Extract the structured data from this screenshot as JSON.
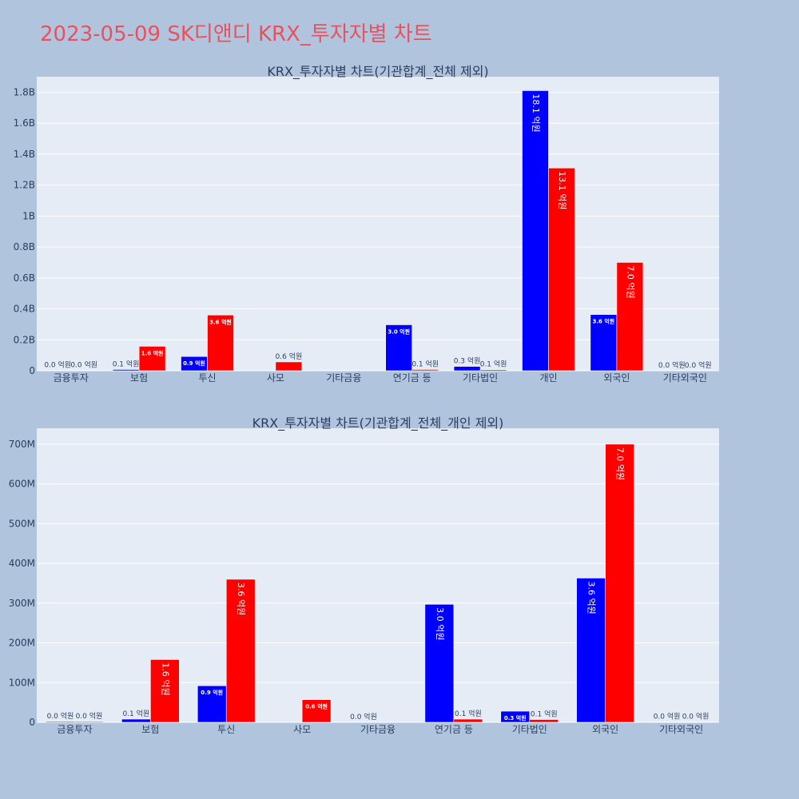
{
  "title": "2023-05-09 SK디앤디 KRX_투자자별 차트",
  "colors": {
    "buy": "#0000ff",
    "sell": "#ff0000",
    "plot_bg": "#e5ecf6",
    "page_bg": "#b0c4de",
    "title": "#e8525e"
  },
  "chart_data": [
    {
      "type": "bar",
      "title": "KRX_투자자별 차트(기관합계_전체 제외)",
      "categories": [
        "금융투자",
        "보험",
        "투신",
        "사모",
        "기타금융",
        "연기금 등",
        "기타법인",
        "개인",
        "외국인",
        "기타외국인"
      ],
      "ylim": [
        0,
        1900000000
      ],
      "yticks": [
        0,
        200000000,
        400000000,
        600000000,
        800000000,
        1000000000,
        1200000000,
        1400000000,
        1600000000,
        1800000000
      ],
      "ytick_labels": [
        "0",
        "0.2B",
        "0.4B",
        "0.6B",
        "0.8B",
        "1B",
        "1.2B",
        "1.4B",
        "1.6B",
        "1.8B"
      ],
      "grid": true,
      "series": [
        {
          "color": "#0000ff",
          "values": [
            2000000,
            8000000,
            92000000,
            null,
            null,
            297000000,
            28000000,
            1810000000,
            363000000,
            1000000
          ],
          "labels": [
            "0.0 억원",
            "0.1 억원",
            "0.9 억원",
            "",
            "",
            "3.0 억원",
            "0.3 억원",
            "18.1 억원",
            "3.6 억원",
            "0.0 억원"
          ]
        },
        {
          "color": "#ff0000",
          "values": [
            2000000,
            158000000,
            360000000,
            57000000,
            null,
            8000000,
            7000000,
            1310000000,
            700000000,
            1000000
          ],
          "labels": [
            "0.0 억원",
            "1.6 억원",
            "3.6 억원",
            "0.6 억원",
            "",
            "0.1 억원",
            "0.1 억원",
            "13.1 억원",
            "7.0 억원",
            "0.0 억원"
          ]
        }
      ]
    },
    {
      "type": "bar",
      "title": "KRX_투자자별 차트(기관합계_전체_개인 제외)",
      "categories": [
        "금융투자",
        "보험",
        "투신",
        "사모",
        "기타금융",
        "연기금 등",
        "기타법인",
        "외국인",
        "기타외국인"
      ],
      "ylim": [
        0,
        740000000
      ],
      "yticks": [
        0,
        100000000,
        200000000,
        300000000,
        400000000,
        500000000,
        600000000,
        700000000
      ],
      "ytick_labels": [
        "0",
        "100M",
        "200M",
        "300M",
        "400M",
        "500M",
        "600M",
        "700M"
      ],
      "grid": true,
      "series": [
        {
          "color": "#0000ff",
          "values": [
            2000000,
            8000000,
            92000000,
            null,
            0,
            297000000,
            28000000,
            363000000,
            1000000
          ],
          "labels": [
            "0.0 억원",
            "0.1 억원",
            "0.9 억원",
            "",
            "0.0 억원",
            "3.0 억원",
            "0.3 억원",
            "3.6 억원",
            "0.0 억원"
          ]
        },
        {
          "color": "#ff0000",
          "values": [
            2000000,
            158000000,
            360000000,
            57000000,
            null,
            8000000,
            7000000,
            700000000,
            1000000
          ],
          "labels": [
            "0.0 억원",
            "1.6 억원",
            "3.6 억원",
            "0.6 억원",
            "",
            "0.1 억원",
            "0.1 억원",
            "7.0 억원",
            "0.0 억원"
          ]
        }
      ]
    }
  ]
}
